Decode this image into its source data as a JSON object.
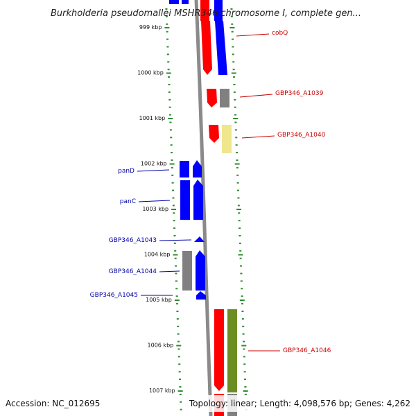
{
  "title": "Burkholderia pseudomallei MSHR346 chromosome I, complete gen...",
  "accession": "Accession: NC_012695",
  "topology": "Topology: linear; Length: 4,098,576 bp; Genes: 4,262",
  "colors": {
    "forward_gene": "#ff0000",
    "reverse_gene": "#0000ff",
    "pseudo_gene": "#808080",
    "pale_gene": "#f0e68c",
    "olive_gene": "#6b8e23",
    "tick": "#2e8b2e",
    "label_right": "#cc0000",
    "label_left": "#0000aa"
  },
  "ticks": [
    {
      "label": "999 kbp",
      "kbp": 999
    },
    {
      "label": "1000 kbp",
      "kbp": 1000
    },
    {
      "label": "1001 kbp",
      "kbp": 1001
    },
    {
      "label": "1002 kbp",
      "kbp": 1002
    },
    {
      "label": "1003 kbp",
      "kbp": 1003
    },
    {
      "label": "1004 kbp",
      "kbp": 1004
    },
    {
      "label": "1005 kbp",
      "kbp": 1005
    },
    {
      "label": "1006 kbp",
      "kbp": 1006
    },
    {
      "label": "1007 kbp",
      "kbp": 1007
    }
  ],
  "gene_labels": [
    {
      "name": "cobQ",
      "side": "right"
    },
    {
      "name": "GBP346_A1039",
      "side": "right"
    },
    {
      "name": "GBP346_A1040",
      "side": "right"
    },
    {
      "name": "panD",
      "side": "left"
    },
    {
      "name": "panC",
      "side": "left"
    },
    {
      "name": "GBP346_A1043",
      "side": "left"
    },
    {
      "name": "GBP346_A1044",
      "side": "left"
    },
    {
      "name": "GBP346_A1045",
      "side": "left"
    },
    {
      "name": "GBP346_A1046",
      "side": "right"
    }
  ]
}
